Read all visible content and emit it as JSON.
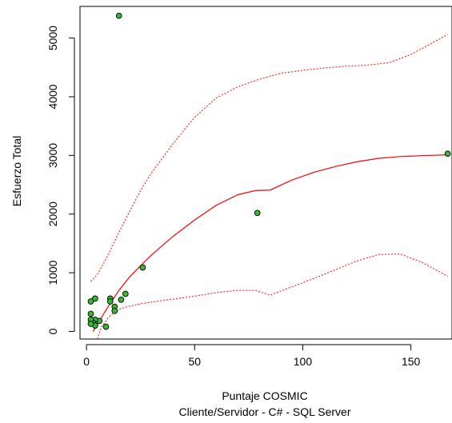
{
  "chart_data": {
    "type": "scatter",
    "xlabel": "Puntaje COSMIC",
    "subtitle": "Cliente/Servidor - C# - SQL Server",
    "ylabel": "Esfuerzo Total",
    "xlim": [
      -3,
      169
    ],
    "ylim": [
      -130,
      5540
    ],
    "x_ticks": [
      0,
      50,
      100,
      150
    ],
    "y_ticks": [
      0,
      1000,
      2000,
      3000,
      4000,
      5000
    ],
    "grid": false,
    "legend": "none",
    "colors": {
      "points": "#33bb33",
      "point_stroke": "#000000",
      "curves": "#ff0000"
    },
    "points": [
      {
        "x": 15,
        "y": 5380
      },
      {
        "x": 167,
        "y": 3030
      },
      {
        "x": 79,
        "y": 2020
      },
      {
        "x": 26,
        "y": 1090
      },
      {
        "x": 18,
        "y": 640
      },
      {
        "x": 16,
        "y": 540
      },
      {
        "x": 11,
        "y": 560
      },
      {
        "x": 11,
        "y": 510
      },
      {
        "x": 13,
        "y": 420
      },
      {
        "x": 13,
        "y": 350
      },
      {
        "x": 4,
        "y": 560
      },
      {
        "x": 2,
        "y": 510
      },
      {
        "x": 9,
        "y": 80
      },
      {
        "x": 6,
        "y": 180
      },
      {
        "x": 4,
        "y": 200
      },
      {
        "x": 2,
        "y": 300
      },
      {
        "x": 3,
        "y": 150
      },
      {
        "x": 4,
        "y": 100
      },
      {
        "x": 2,
        "y": 200
      },
      {
        "x": 2,
        "y": 130
      }
    ],
    "series": [
      {
        "style": "solid",
        "x": [
          3,
          6,
          10,
          15,
          20,
          25,
          30,
          40,
          50,
          60,
          70,
          78,
          85,
          95,
          105,
          115,
          125,
          135,
          145,
          155,
          167
        ],
        "y": [
          0,
          180,
          420,
          700,
          930,
          1120,
          1300,
          1620,
          1900,
          2150,
          2330,
          2400,
          2410,
          2580,
          2710,
          2810,
          2890,
          2950,
          2980,
          2995,
          3010
        ]
      },
      {
        "style": "dotted",
        "x": [
          2,
          5,
          10,
          15,
          20,
          25,
          30,
          40,
          50,
          60,
          70,
          80,
          90,
          100,
          110,
          120,
          130,
          140,
          150,
          160,
          167
        ],
        "y": [
          850,
          970,
          1300,
          1690,
          2050,
          2400,
          2700,
          3200,
          3650,
          3980,
          4170,
          4300,
          4400,
          4450,
          4490,
          4520,
          4540,
          4580,
          4720,
          4920,
          5060
        ]
      },
      {
        "style": "dotted",
        "x": [
          5,
          7,
          10,
          13,
          16,
          20,
          25,
          30,
          40,
          50,
          60,
          70,
          78,
          85,
          95,
          105,
          115,
          125,
          135,
          145,
          155,
          167
        ],
        "y": [
          -130,
          80,
          230,
          330,
          390,
          430,
          470,
          500,
          550,
          600,
          660,
          700,
          700,
          620,
          760,
          900,
          1050,
          1200,
          1310,
          1320,
          1180,
          940
        ]
      }
    ]
  }
}
